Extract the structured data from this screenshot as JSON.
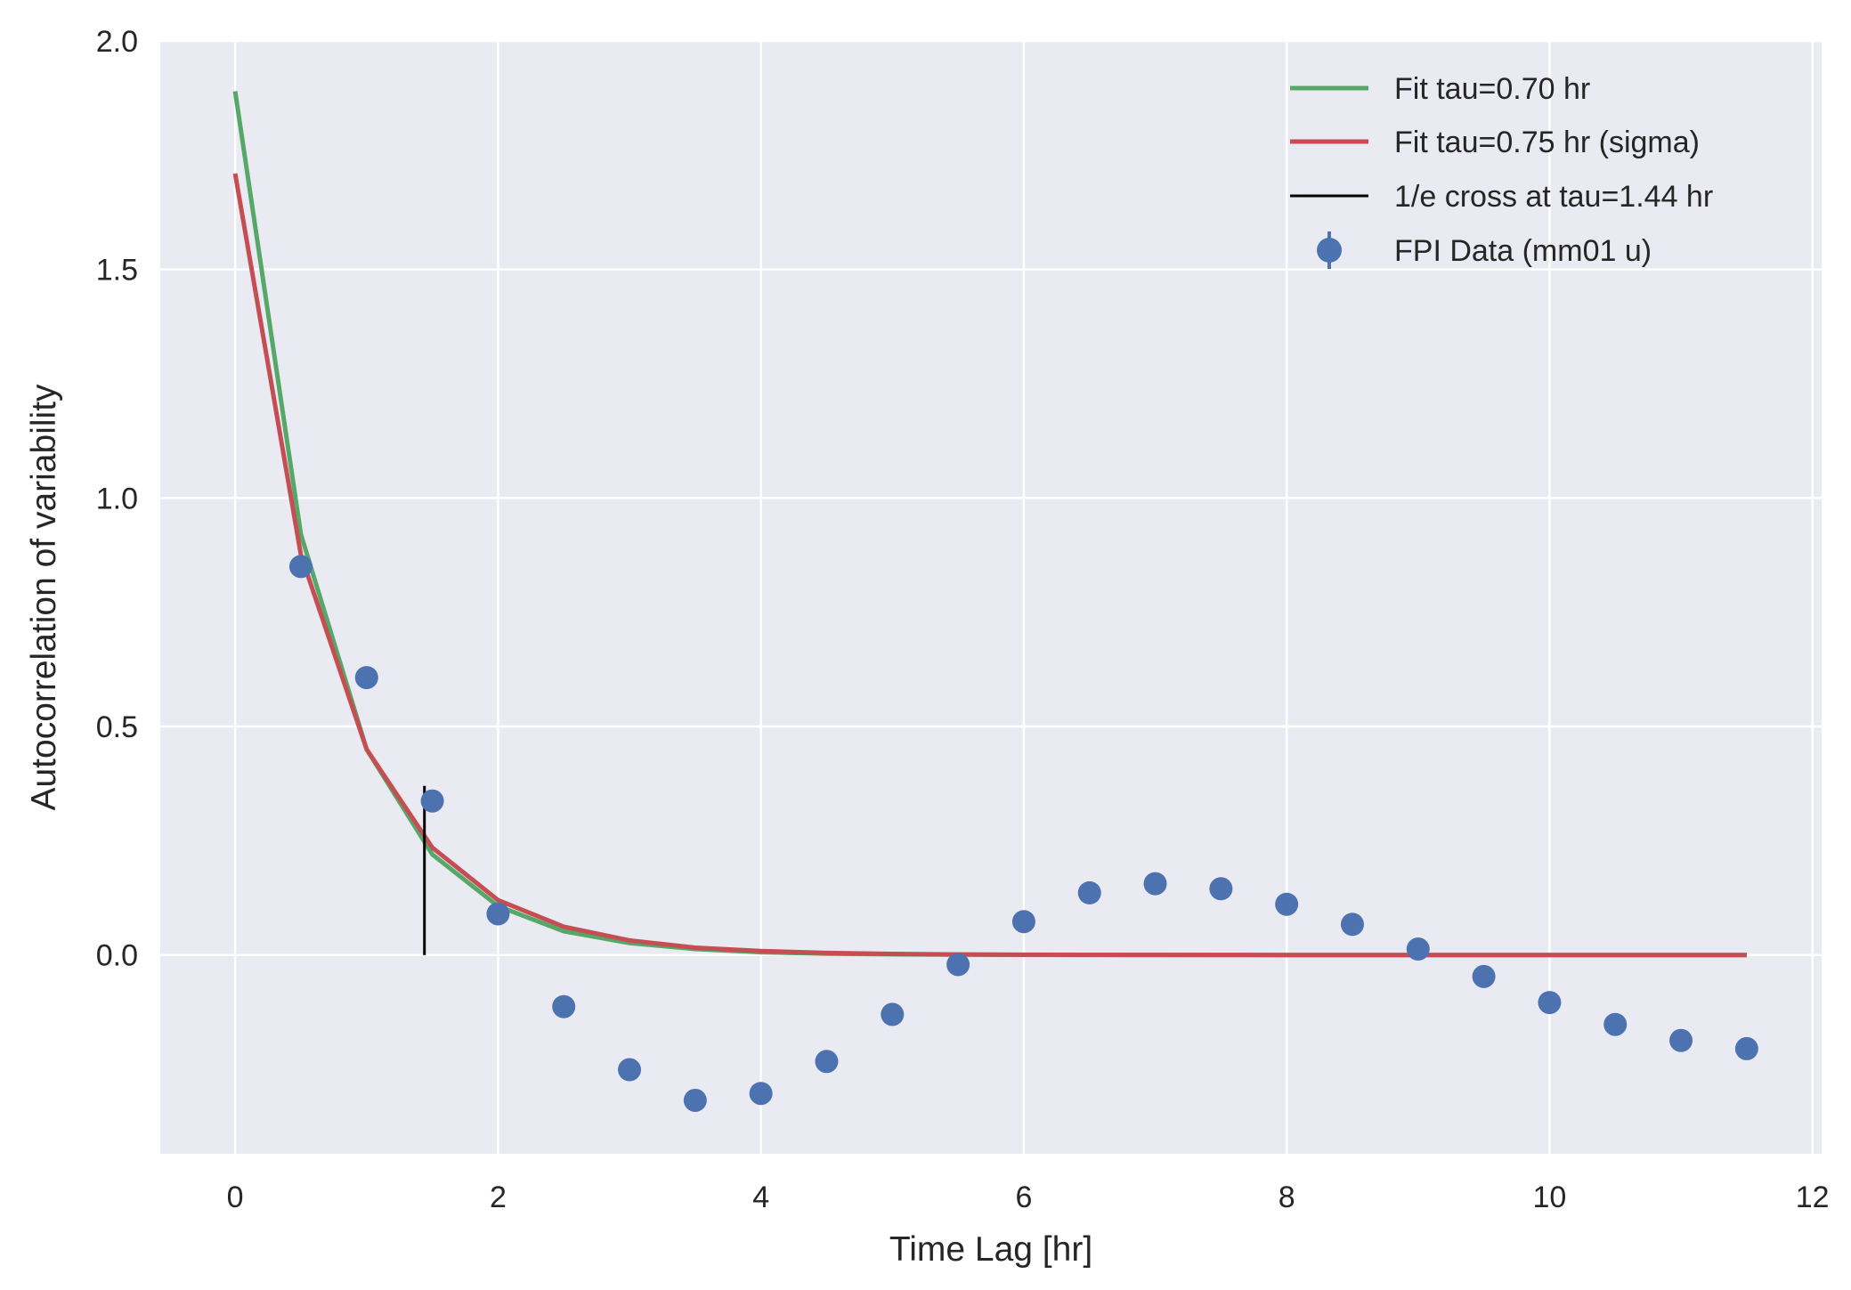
{
  "chart_data": {
    "type": "line",
    "title": "",
    "xlabel": "Time Lag [hr]",
    "ylabel": "Autocorrelation of variability",
    "xlim": [
      -0.57,
      12.07
    ],
    "ylim": [
      -0.435,
      2.0
    ],
    "xticks": [
      0,
      2,
      4,
      6,
      8,
      10,
      12
    ],
    "xtick_labels": [
      "0",
      "2",
      "4",
      "6",
      "8",
      "10",
      "12"
    ],
    "yticks": [
      0.0,
      0.5,
      1.0,
      1.5,
      2.0
    ],
    "ytick_labels": [
      "0.0",
      "0.5",
      "1.0",
      "1.5",
      "2.0"
    ],
    "grid": true,
    "legend_position": "top-right",
    "x": [
      0,
      0.5,
      1,
      1.5,
      2,
      2.5,
      3,
      3.5,
      4,
      4.5,
      5,
      5.5,
      6,
      6.5,
      7,
      7.5,
      8,
      8.5,
      9,
      9.5,
      10,
      10.5,
      11,
      11.5
    ],
    "series": [
      {
        "name": "Fit tau=0.70 hr",
        "kind": "line",
        "color": "#55a868",
        "values": [
          1.89,
          0.92,
          0.45,
          0.22,
          0.107,
          0.052,
          0.026,
          0.013,
          0.006,
          0.003,
          0.0015,
          0.0007,
          0.0004,
          0.0002,
          0.0001,
          0,
          0,
          0,
          0,
          0,
          0,
          0,
          0,
          0
        ]
      },
      {
        "name": "Fit tau=0.75 hr (sigma)",
        "kind": "line",
        "color": "#c44e52",
        "values": [
          1.71,
          0.875,
          0.45,
          0.235,
          0.12,
          0.062,
          0.032,
          0.016,
          0.0085,
          0.0044,
          0.0023,
          0.0012,
          0.0006,
          0.0003,
          0.00015,
          0.0001,
          0,
          0,
          0,
          0,
          0,
          0,
          0,
          0
        ]
      },
      {
        "name": "1/e cross at tau=1.44 hr",
        "kind": "vline",
        "color": "#000000",
        "x": 1.44,
        "y_range": [
          0.0,
          0.37
        ]
      },
      {
        "name": "FPI Data (mm01 u)",
        "kind": "scatter",
        "color": "#4c72b0",
        "x": [
          0.5,
          1,
          1.5,
          2,
          2.5,
          3,
          3.5,
          4,
          4.5,
          5,
          5.5,
          6,
          6.5,
          7,
          7.5,
          8,
          8.5,
          9,
          9.5,
          10,
          10.5,
          11,
          11.5
        ],
        "values": [
          0.85,
          0.607,
          0.337,
          0.09,
          -0.113,
          -0.251,
          -0.318,
          -0.303,
          -0.233,
          -0.13,
          -0.021,
          0.073,
          0.136,
          0.156,
          0.145,
          0.111,
          0.067,
          0.013,
          -0.047,
          -0.104,
          -0.152,
          -0.187,
          -0.205
        ]
      }
    ]
  }
}
